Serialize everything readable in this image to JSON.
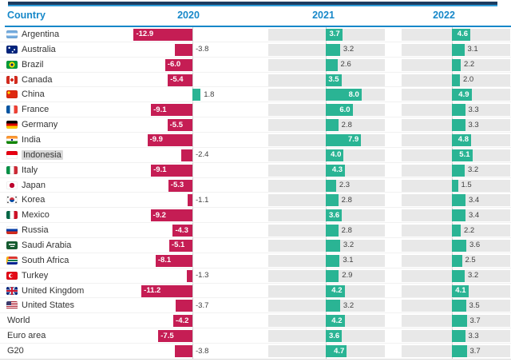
{
  "header": {
    "country": "Country",
    "years": [
      "2020",
      "2021",
      "2022"
    ]
  },
  "colors": {
    "negative_bar": "#c51d54",
    "positive_bar": "#2ab494",
    "header_text": "#1788c9",
    "header_rule": "#1788c9",
    "top_bar_navy": "#1c3c60",
    "top_bar_accent": "#2f9cd8",
    "forecast_band": "#e8e8e8"
  },
  "highlighted_row": "Indonesia",
  "rows": [
    {
      "country": "Argentina",
      "flag": "argentina"
    },
    {
      "country": "Australia",
      "flag": "australia"
    },
    {
      "country": "Brazil",
      "flag": "brazil"
    },
    {
      "country": "Canada",
      "flag": "canada"
    },
    {
      "country": "China",
      "flag": "china"
    },
    {
      "country": "France",
      "flag": "france"
    },
    {
      "country": "Germany",
      "flag": "germany"
    },
    {
      "country": "India",
      "flag": "india"
    },
    {
      "country": "Indonesia",
      "flag": "indonesia"
    },
    {
      "country": "Italy",
      "flag": "italy"
    },
    {
      "country": "Japan",
      "flag": "japan"
    },
    {
      "country": "Korea",
      "flag": "korea"
    },
    {
      "country": "Mexico",
      "flag": "mexico"
    },
    {
      "country": "Russia",
      "flag": "russia"
    },
    {
      "country": "Saudi Arabia",
      "flag": "saudi-arabia"
    },
    {
      "country": "South Africa",
      "flag": "south-africa"
    },
    {
      "country": "Turkey",
      "flag": "turkey"
    },
    {
      "country": "United Kingdom",
      "flag": "united-kingdom"
    },
    {
      "country": "United States",
      "flag": "united-states"
    },
    {
      "country": "World",
      "flag": null
    },
    {
      "country": "Euro area",
      "flag": null
    },
    {
      "country": "G20",
      "flag": null
    }
  ],
  "chart_data": {
    "type": "bar",
    "orientation": "horizontal",
    "categories": [
      "Argentina",
      "Australia",
      "Brazil",
      "Canada",
      "China",
      "France",
      "Germany",
      "India",
      "Indonesia",
      "Italy",
      "Japan",
      "Korea",
      "Mexico",
      "Russia",
      "Saudi Arabia",
      "South Africa",
      "Turkey",
      "United Kingdom",
      "United States",
      "World",
      "Euro area",
      "G20"
    ],
    "series": [
      {
        "name": "2020",
        "values": [
          -12.9,
          -3.8,
          -6.0,
          -5.4,
          1.8,
          -9.1,
          -5.5,
          -9.9,
          -2.4,
          -9.1,
          -5.3,
          -1.1,
          -9.2,
          -4.3,
          -5.1,
          -8.1,
          -1.3,
          -11.2,
          -3.7,
          -4.2,
          -7.5,
          -3.8
        ]
      },
      {
        "name": "2021",
        "values": [
          3.7,
          3.2,
          2.6,
          3.5,
          8.0,
          6.0,
          2.8,
          7.9,
          4.0,
          4.3,
          2.3,
          2.8,
          3.6,
          2.8,
          3.2,
          3.1,
          2.9,
          4.2,
          3.2,
          4.2,
          3.6,
          4.7
        ]
      },
      {
        "name": "2022",
        "values": [
          4.6,
          3.1,
          2.2,
          2.0,
          4.9,
          3.3,
          3.3,
          4.8,
          5.1,
          3.2,
          1.5,
          3.4,
          3.4,
          2.2,
          3.6,
          2.5,
          3.2,
          4.1,
          3.5,
          3.7,
          3.3,
          3.7
        ]
      }
    ],
    "value_labels": "one_decimal",
    "negative_color_meaning": "contraction",
    "positive_color_meaning": "growth",
    "shaded_columns": [
      "2021",
      "2022"
    ],
    "legend_position": "column-headers"
  }
}
